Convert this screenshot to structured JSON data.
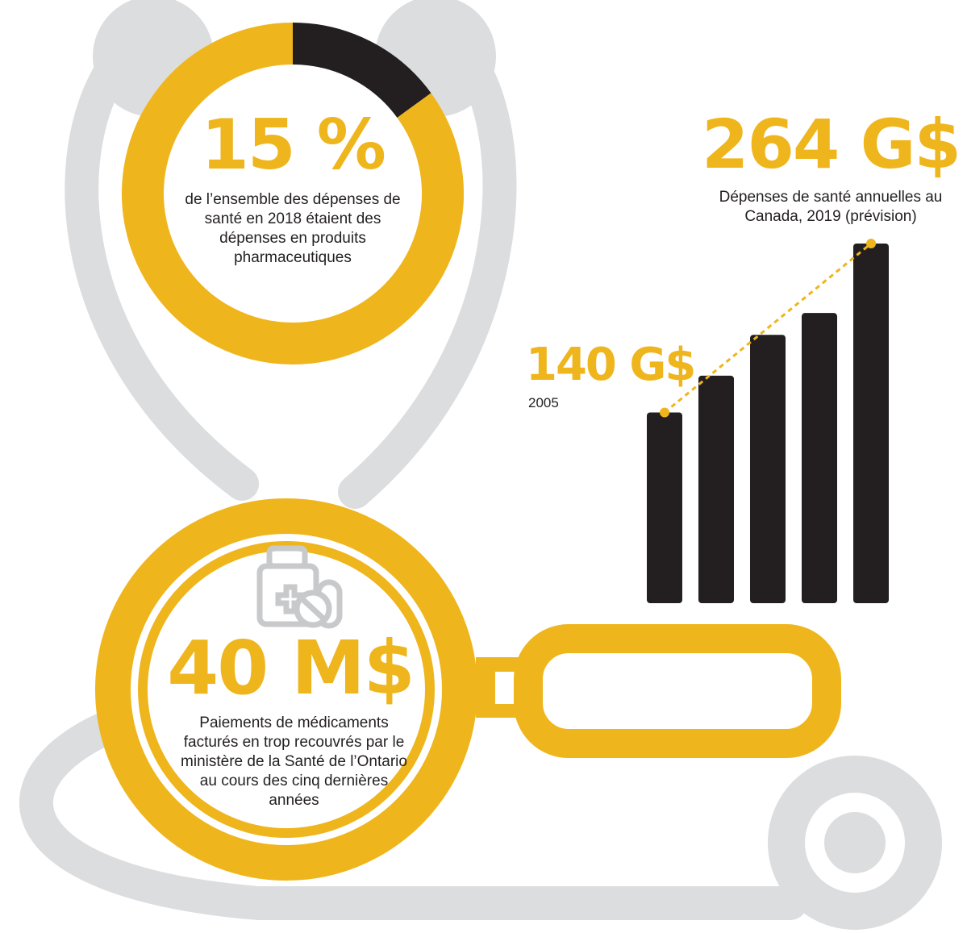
{
  "chart_data": [
    {
      "type": "donut",
      "values": [
        15,
        85
      ],
      "colors": [
        "#231f20",
        "#efb51c"
      ],
      "value_label": "15 %",
      "caption": "de l’ensemble des dépenses de santé en 2018 étaient des dépenses en produits pharmaceutiques"
    },
    {
      "type": "bar",
      "values": [
        140,
        167,
        197,
        213,
        264
      ],
      "color": "#231f20",
      "ylim": [
        0,
        264
      ],
      "value_labels": [
        "140 G$",
        null,
        null,
        null,
        "264 G$"
      ],
      "categories": [
        "2005",
        null,
        null,
        null,
        "Dépenses de santé annuelles au Canada, 2019 (prévision)"
      ],
      "trend_color": "#efb51c"
    }
  ],
  "callout": {
    "value": "40 M$",
    "text": "Paiements de médicaments facturés en trop recouvrés par le ministère de la Santé de l’Ontario au cours des cinq dernières années"
  }
}
